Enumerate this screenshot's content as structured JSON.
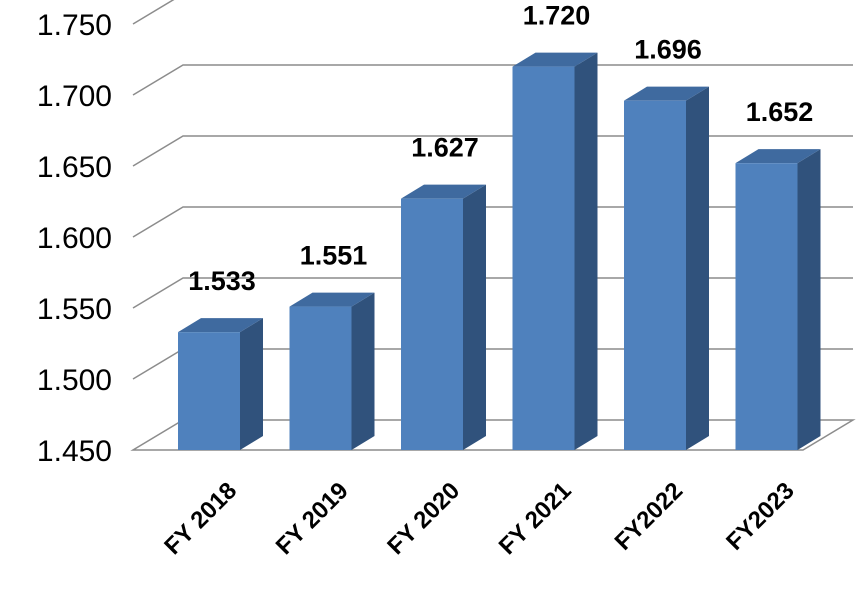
{
  "chart_data": {
    "type": "bar",
    "categories": [
      "FY 2018",
      "FY 2019",
      "FY 2020",
      "FY 2021",
      "FY2022",
      "FY2023"
    ],
    "values": [
      1.533,
      1.551,
      1.627,
      1.72,
      1.696,
      1.652
    ],
    "value_labels": [
      "1.533",
      "1.551",
      "1.627",
      "1.720",
      "1.696",
      "1.652"
    ],
    "y_ticks": [
      "1.450",
      "1.500",
      "1.550",
      "1.600",
      "1.650",
      "1.700",
      "1.750"
    ],
    "ylim": [
      1.45,
      1.75
    ],
    "grid": true,
    "legend": "none",
    "three_d": true,
    "colors": {
      "bar_front": "#4f81bd",
      "bar_side": "#30527c",
      "bar_top": "#3f6a9f"
    }
  }
}
